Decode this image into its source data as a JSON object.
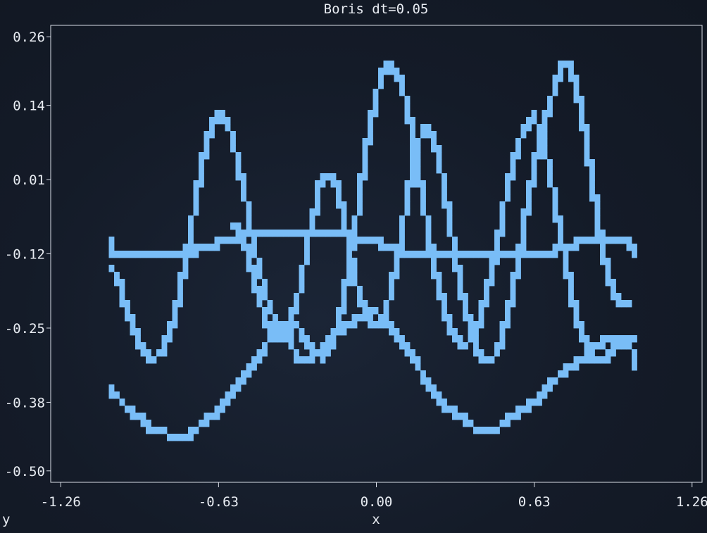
{
  "chart_data": {
    "type": "line",
    "title": "Boris dt=0.05",
    "xlabel": "x",
    "ylabel": "y",
    "xlim": [
      -1.3,
      1.3
    ],
    "ylim": [
      -0.52,
      0.28
    ],
    "xticks": [
      "-1.26",
      "-0.63",
      "0.00",
      "0.63",
      "1.26"
    ],
    "xtick_values": [
      -1.26,
      -0.63,
      0.0,
      0.63,
      1.26
    ],
    "yticks": [
      "0.26",
      "0.14",
      "0.01",
      "-0.12",
      "-0.25",
      "-0.38",
      "-0.50"
    ],
    "ytick_values": [
      0.26,
      0.14,
      0.01,
      -0.12,
      -0.25,
      -0.38,
      -0.5
    ],
    "grid": false,
    "series_color": "#79bdf7",
    "series": [
      {
        "name": "",
        "x": [
          -1.06,
          -1.05,
          -1.02,
          -0.98,
          -0.94,
          -0.9,
          -0.86,
          -0.83,
          -0.8,
          -0.77,
          -0.74,
          -0.71,
          -0.69,
          -0.66,
          -0.63,
          -0.61,
          -0.59,
          -0.57,
          -0.55,
          -0.53,
          -0.51,
          -0.49,
          -0.47,
          -0.45,
          -0.43,
          -0.4,
          -0.37,
          -0.33,
          -0.29,
          -0.25,
          -0.22,
          -0.18,
          -0.14,
          -0.1,
          -0.06,
          -0.03,
          0.0,
          0.02,
          0.04,
          0.06,
          0.08,
          0.1,
          0.12,
          0.14,
          0.16,
          0.18,
          0.2,
          0.22,
          0.24,
          0.27,
          0.3,
          0.33,
          0.36,
          0.39,
          0.42,
          0.45,
          0.48,
          0.51,
          0.54,
          0.57,
          0.6,
          0.63,
          0.66,
          0.69,
          0.72,
          0.75,
          0.78,
          0.81,
          0.84,
          0.87,
          0.9,
          0.93,
          0.96,
          0.99,
          1.01,
          1.03
        ],
        "y": [
          -0.1,
          -0.12,
          -0.12,
          -0.12,
          -0.12,
          -0.12,
          -0.12,
          -0.12,
          -0.12,
          -0.12,
          -0.12,
          -0.11,
          -0.11,
          -0.11,
          -0.1,
          -0.1,
          -0.1,
          -0.09,
          -0.09,
          -0.09,
          -0.08,
          -0.08,
          -0.08,
          -0.08,
          -0.08,
          -0.08,
          -0.08,
          -0.08,
          -0.08,
          -0.08,
          -0.08,
          -0.08,
          -0.08,
          -0.09,
          -0.09,
          -0.1,
          -0.1,
          -0.1,
          -0.11,
          -0.11,
          -0.11,
          -0.12,
          -0.12,
          -0.12,
          -0.12,
          -0.12,
          -0.12,
          -0.12,
          -0.12,
          -0.12,
          -0.12,
          -0.12,
          -0.12,
          -0.12,
          -0.12,
          -0.12,
          -0.12,
          -0.12,
          -0.12,
          -0.12,
          -0.12,
          -0.12,
          -0.12,
          -0.12,
          -0.11,
          -0.11,
          -0.11,
          -0.1,
          -0.1,
          -0.1,
          -0.1,
          -0.1,
          -0.1,
          -0.1,
          -0.1,
          -0.12
        ]
      },
      {
        "name": "",
        "x": [
          -1.06,
          -1.03,
          -1.0,
          -0.97,
          -0.94,
          -0.91,
          -0.88,
          -0.85,
          -0.82,
          -0.79,
          -0.76,
          -0.73,
          -0.7,
          -0.67,
          -0.64,
          -0.61,
          -0.58,
          -0.55,
          -0.52,
          -0.49,
          -0.46,
          -0.43,
          -0.4,
          -0.37,
          -0.34,
          -0.31,
          -0.28,
          -0.25,
          -0.22,
          -0.19,
          -0.16,
          -0.13,
          -0.1,
          -0.07,
          -0.04,
          -0.01,
          0.02,
          0.05,
          0.08,
          0.11,
          0.14,
          0.17,
          0.2,
          0.23,
          0.26,
          0.29,
          0.32,
          0.35,
          0.38,
          0.41,
          0.44,
          0.47,
          0.5,
          0.53,
          0.56,
          0.59,
          0.62,
          0.65,
          0.68,
          0.71,
          0.74,
          0.77,
          0.8,
          0.83,
          0.86,
          0.89,
          0.92,
          0.95,
          0.98,
          1.01,
          1.04,
          1.04
        ],
        "y": [
          -0.14,
          -0.17,
          -0.21,
          -0.25,
          -0.28,
          -0.3,
          -0.3,
          -0.29,
          -0.25,
          -0.2,
          -0.13,
          -0.05,
          0.03,
          0.09,
          0.12,
          0.12,
          0.09,
          0.04,
          -0.03,
          -0.1,
          -0.16,
          -0.21,
          -0.24,
          -0.26,
          -0.28,
          -0.3,
          -0.31,
          -0.3,
          -0.29,
          -0.27,
          -0.26,
          -0.25,
          -0.24,
          -0.23,
          -0.22,
          -0.22,
          -0.23,
          -0.24,
          -0.26,
          -0.28,
          -0.3,
          -0.32,
          -0.34,
          -0.36,
          -0.38,
          -0.39,
          -0.4,
          -0.41,
          -0.42,
          -0.43,
          -0.43,
          -0.43,
          -0.42,
          -0.41,
          -0.4,
          -0.39,
          -0.38,
          -0.37,
          -0.36,
          -0.34,
          -0.33,
          -0.32,
          -0.31,
          -0.3,
          -0.29,
          -0.28,
          -0.27,
          -0.27,
          -0.27,
          -0.28,
          -0.3,
          -0.32
        ]
      },
      {
        "name": "",
        "x": [
          -1.06,
          -1.03,
          -1.0,
          -0.97,
          -0.94,
          -0.91,
          -0.88,
          -0.85,
          -0.82,
          -0.79,
          -0.76,
          -0.73,
          -0.7,
          -0.67,
          -0.64,
          -0.61,
          -0.58,
          -0.55,
          -0.52,
          -0.49,
          -0.46,
          -0.43,
          -0.4,
          -0.37,
          -0.34,
          -0.31,
          -0.28,
          -0.25,
          -0.22,
          -0.19,
          -0.16,
          -0.13,
          -0.1,
          -0.07,
          -0.04,
          -0.01,
          0.02,
          0.05,
          0.08,
          0.11,
          0.14,
          0.17,
          0.2,
          0.23,
          0.26,
          0.29,
          0.32,
          0.35,
          0.38,
          0.41,
          0.44,
          0.47,
          0.5,
          0.53,
          0.56,
          0.59,
          0.62,
          0.65,
          0.68,
          0.71,
          0.74,
          0.77,
          0.8,
          0.83,
          0.86,
          0.89,
          0.92,
          0.95,
          0.98,
          1.01,
          1.04
        ],
        "y": [
          -0.36,
          -0.37,
          -0.39,
          -0.4,
          -0.41,
          -0.42,
          -0.43,
          -0.43,
          -0.44,
          -0.44,
          -0.44,
          -0.43,
          -0.42,
          -0.41,
          -0.4,
          -0.38,
          -0.37,
          -0.35,
          -0.33,
          -0.31,
          -0.29,
          -0.27,
          -0.25,
          -0.24,
          -0.24,
          -0.25,
          -0.27,
          -0.29,
          -0.3,
          -0.29,
          -0.26,
          -0.2,
          -0.12,
          -0.03,
          0.07,
          0.14,
          0.19,
          0.21,
          0.2,
          0.16,
          0.1,
          0.02,
          -0.06,
          -0.14,
          -0.2,
          -0.24,
          -0.27,
          -0.28,
          -0.27,
          -0.24,
          -0.19,
          -0.13,
          -0.06,
          0.01,
          0.06,
          0.1,
          0.12,
          0.1,
          0.05,
          -0.02,
          -0.1,
          -0.17,
          -0.23,
          -0.27,
          -0.3,
          -0.31,
          -0.3,
          -0.28,
          -0.27,
          -0.27,
          -0.27
        ]
      },
      {
        "name": "",
        "x": [
          -0.58,
          -0.55,
          -0.52,
          -0.49,
          -0.46,
          -0.43,
          -0.4,
          -0.37,
          -0.34,
          -0.31,
          -0.28,
          -0.25,
          -0.22,
          -0.19,
          -0.16,
          -0.13,
          -0.1,
          -0.07,
          -0.04,
          -0.01,
          0.02,
          0.05,
          0.08,
          0.11,
          0.14,
          0.17,
          0.2,
          0.23,
          0.26,
          0.29,
          0.32,
          0.35,
          0.38,
          0.41,
          0.44,
          0.47,
          0.5,
          0.53,
          0.56,
          0.59,
          0.62,
          0.65,
          0.68,
          0.71,
          0.74,
          0.77,
          0.8,
          0.83,
          0.86,
          0.89,
          0.92,
          0.95,
          0.98,
          1.01
        ],
        "y": [
          -0.07,
          -0.08,
          -0.11,
          -0.16,
          -0.21,
          -0.25,
          -0.27,
          -0.27,
          -0.24,
          -0.19,
          -0.12,
          -0.05,
          0.01,
          0.02,
          0.0,
          -0.06,
          -0.13,
          -0.19,
          -0.23,
          -0.25,
          -0.24,
          -0.2,
          -0.14,
          -0.06,
          0.02,
          0.08,
          0.1,
          0.08,
          0.02,
          -0.06,
          -0.14,
          -0.21,
          -0.26,
          -0.29,
          -0.31,
          -0.3,
          -0.27,
          -0.22,
          -0.15,
          -0.07,
          0.01,
          0.07,
          0.12,
          0.17,
          0.21,
          0.21,
          0.17,
          0.1,
          0.01,
          -0.08,
          -0.15,
          -0.19,
          -0.21,
          -0.21
        ]
      }
    ]
  }
}
